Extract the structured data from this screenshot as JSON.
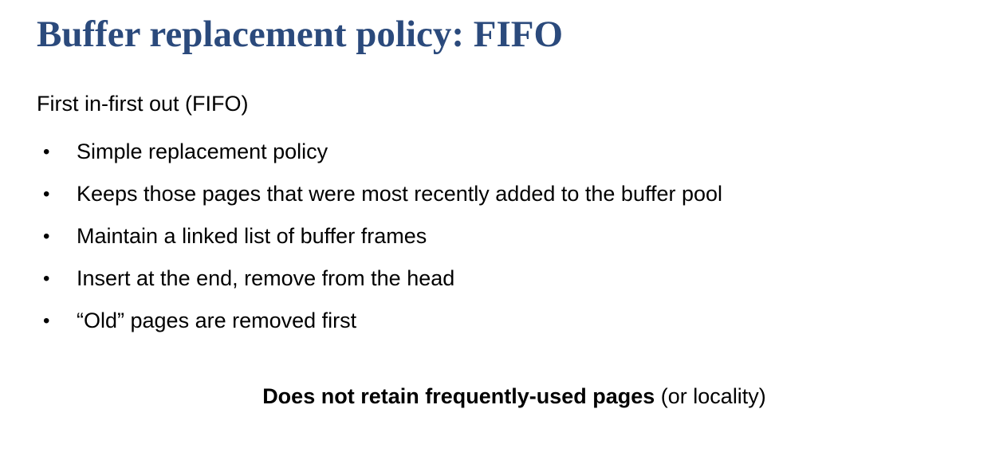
{
  "slide": {
    "title": "Buffer replacement policy: FIFO",
    "intro": "First in-first out (FIFO)",
    "bullet_glyph": "•",
    "bullets": [
      "Simple replacement policy",
      "Keeps those pages that were most recently added to the buffer pool",
      "Maintain a linked list of buffer frames",
      "Insert at the end, remove from the head",
      "“Old” pages are removed first"
    ],
    "footer": {
      "bold_text": "Does not retain frequently-used pages",
      "normal_text": " (or locality)"
    },
    "colors": {
      "title": "#2b4a7c",
      "body_text": "#000000",
      "background": "#ffffff"
    }
  }
}
